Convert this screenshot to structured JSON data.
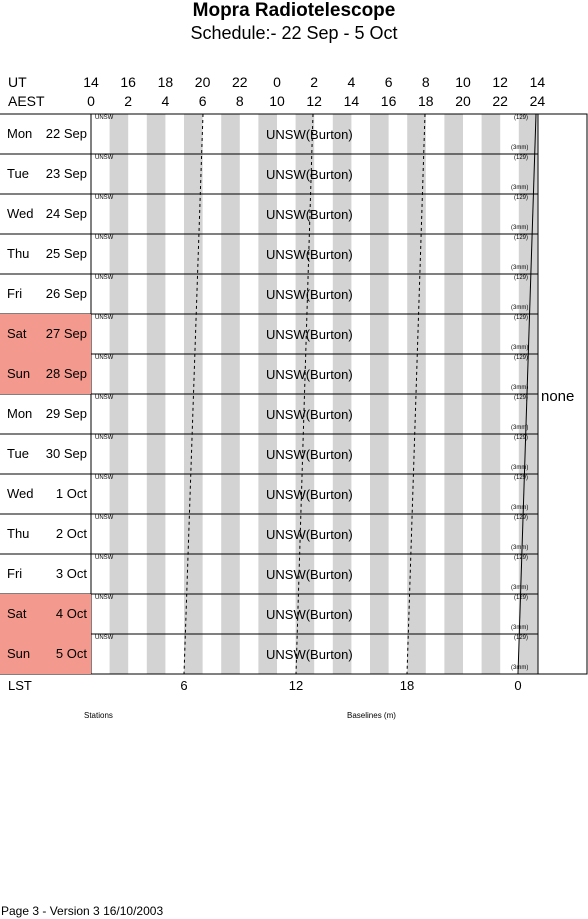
{
  "title": "Mopra Radiotelescope",
  "subtitle": "Schedule:- 22 Sep - 5  Oct",
  "header": {
    "ut_label": "UT",
    "aest_label": "AEST",
    "ut_ticks": [
      "14",
      "16",
      "18",
      "20",
      "22",
      "0",
      "2",
      "4",
      "6",
      "8",
      "10",
      "12",
      "14"
    ],
    "aest_ticks": [
      "0",
      "2",
      "4",
      "6",
      "8",
      "10",
      "12",
      "14",
      "16",
      "18",
      "20",
      "22",
      "24"
    ]
  },
  "rows": [
    {
      "dow": "Mon",
      "date": "22 Sep",
      "weekend": false,
      "label_small": "UNSW",
      "label": "UNSW(Burton)",
      "top_note": "(129)",
      "bottom_note": "(3mm)"
    },
    {
      "dow": "Tue",
      "date": "23 Sep",
      "weekend": false,
      "label_small": "UNSW",
      "label": "UNSW(Burton)",
      "top_note": "(129)",
      "bottom_note": "(3mm)"
    },
    {
      "dow": "Wed",
      "date": "24 Sep",
      "weekend": false,
      "label_small": "UNSW",
      "label": "UNSW(Burton)",
      "top_note": "(129)",
      "bottom_note": "(3mm)"
    },
    {
      "dow": "Thu",
      "date": "25 Sep",
      "weekend": false,
      "label_small": "UNSW",
      "label": "UNSW(Burton)",
      "top_note": "(129)",
      "bottom_note": "(3mm)"
    },
    {
      "dow": "Fri",
      "date": "26 Sep",
      "weekend": false,
      "label_small": "UNSW",
      "label": "UNSW(Burton)",
      "top_note": "(129)",
      "bottom_note": "(3mm)"
    },
    {
      "dow": "Sat",
      "date": "27 Sep",
      "weekend": true,
      "label_small": "UNSW",
      "label": "UNSW(Burton)",
      "top_note": "(129)",
      "bottom_note": "(3mm)"
    },
    {
      "dow": "Sun",
      "date": "28 Sep",
      "weekend": true,
      "label_small": "UNSW",
      "label": "UNSW(Burton)",
      "top_note": "(129)",
      "bottom_note": "(3mm)"
    },
    {
      "dow": "Mon",
      "date": "29 Sep",
      "weekend": false,
      "label_small": "UNSW",
      "label": "UNSW(Burton)",
      "top_note": "(129)",
      "bottom_note": "(3mm)"
    },
    {
      "dow": "Tue",
      "date": "30 Sep",
      "weekend": false,
      "label_small": "UNSW",
      "label": "UNSW(Burton)",
      "top_note": "(129)",
      "bottom_note": "(3mm)"
    },
    {
      "dow": "Wed",
      "date": "1  Oct",
      "weekend": false,
      "label_small": "UNSW",
      "label": "UNSW(Burton)",
      "top_note": "(129)",
      "bottom_note": "(3mm)"
    },
    {
      "dow": "Thu",
      "date": "2  Oct",
      "weekend": false,
      "label_small": "UNSW",
      "label": "UNSW(Burton)",
      "top_note": "(129)",
      "bottom_note": "(3mm)"
    },
    {
      "dow": "Fri",
      "date": "3  Oct",
      "weekend": false,
      "label_small": "UNSW",
      "label": "UNSW(Burton)",
      "top_note": "(129)",
      "bottom_note": "(3mm)"
    },
    {
      "dow": "Sat",
      "date": "4  Oct",
      "weekend": true,
      "label_small": "UNSW",
      "label": "UNSW(Burton)",
      "top_note": "(129)",
      "bottom_note": "(3mm)"
    },
    {
      "dow": "Sun",
      "date": "5  Oct",
      "weekend": true,
      "label_small": "UNSW",
      "label": "UNSW(Burton)",
      "top_note": "(129)",
      "bottom_note": "(3mm)"
    }
  ],
  "side_note": "none",
  "lst": {
    "label": "LST",
    "ticks": [
      "6",
      "12",
      "18",
      "0"
    ]
  },
  "legend": {
    "stations": "Stations",
    "baselines": "Baselines (m)"
  },
  "footer": "Page 3 - Version 3  16/10/2003",
  "colors": {
    "weekend": "#f4998d",
    "stripe": "#d3d3d3"
  }
}
